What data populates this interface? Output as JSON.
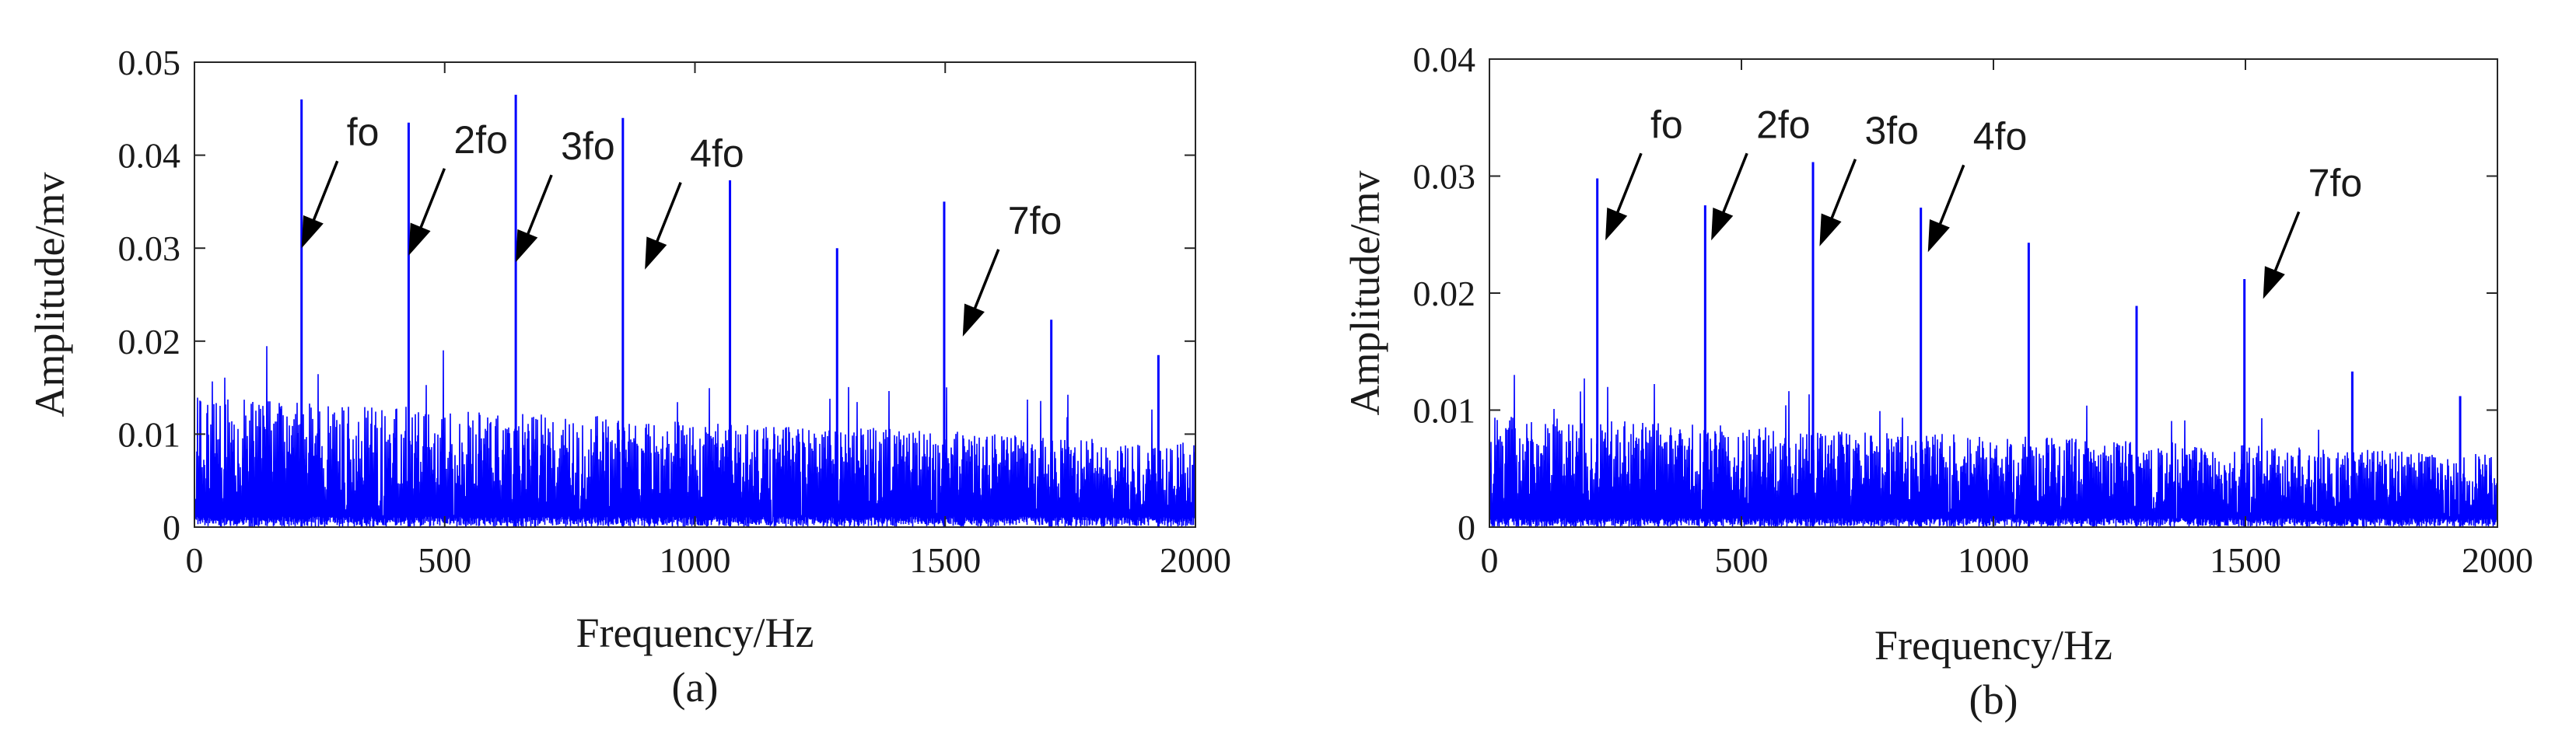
{
  "chart_data": [
    {
      "type": "line",
      "caption": "(a)",
      "xlabel": "Frequency/Hz",
      "ylabel": "Amplitude/mv",
      "xlim": [
        0,
        2000
      ],
      "ylim": [
        0,
        0.05
      ],
      "xticks": [
        0,
        500,
        1000,
        1500,
        2000
      ],
      "xtick_labels": [
        "0",
        "500",
        "1000",
        "1500",
        "2000"
      ],
      "yticks": [
        0,
        0.01,
        0.02,
        0.03,
        0.04,
        0.05
      ],
      "ytick_labels": [
        "0",
        "0.01",
        "0.02",
        "0.03",
        "0.04",
        "0.05"
      ],
      "grid": false,
      "line_color": "#0000ff",
      "noise_floor": {
        "typical_max": 0.014,
        "peak_max": 0.021
      },
      "peaks": [
        {
          "x": 214,
          "y": 0.046
        },
        {
          "x": 428,
          "y": 0.0435
        },
        {
          "x": 642,
          "y": 0.0465
        },
        {
          "x": 856,
          "y": 0.044
        },
        {
          "x": 1070,
          "y": 0.0373
        },
        {
          "x": 1284,
          "y": 0.03
        },
        {
          "x": 1498,
          "y": 0.035
        },
        {
          "x": 1712,
          "y": 0.0223
        },
        {
          "x": 1926,
          "y": 0.0185
        }
      ],
      "annotations": [
        {
          "text": "fo",
          "x": 214,
          "y": 0.03
        },
        {
          "text": "2fo",
          "x": 428,
          "y": 0.0292
        },
        {
          "text": "3fo",
          "x": 642,
          "y": 0.0285
        },
        {
          "text": "4fo",
          "x": 900,
          "y": 0.0277
        },
        {
          "text": "7fo",
          "x": 1535,
          "y": 0.0205
        }
      ]
    },
    {
      "type": "line",
      "caption": "(b)",
      "xlabel": "Frequency/Hz",
      "ylabel": "Amplitude/mv",
      "xlim": [
        0,
        2000
      ],
      "ylim": [
        0,
        0.04
      ],
      "xticks": [
        0,
        500,
        1000,
        1500,
        2000
      ],
      "xtick_labels": [
        "0",
        "500",
        "1000",
        "1500",
        "2000"
      ],
      "yticks": [
        0,
        0.01,
        0.02,
        0.03,
        0.04
      ],
      "ytick_labels": [
        "0",
        "0.01",
        "0.02",
        "0.03",
        "0.04"
      ],
      "grid": false,
      "line_color": "#0000ff",
      "noise_floor": {
        "typical_max": 0.0095,
        "peak_max": 0.0135
      },
      "peaks": [
        {
          "x": 214,
          "y": 0.0298
        },
        {
          "x": 428,
          "y": 0.0275
        },
        {
          "x": 642,
          "y": 0.0312
        },
        {
          "x": 856,
          "y": 0.0273
        },
        {
          "x": 1070,
          "y": 0.0243
        },
        {
          "x": 1284,
          "y": 0.0189
        },
        {
          "x": 1498,
          "y": 0.0212
        },
        {
          "x": 1712,
          "y": 0.0133
        },
        {
          "x": 1926,
          "y": 0.0112
        }
      ],
      "annotations": [
        {
          "text": "fo",
          "x": 230,
          "y": 0.0245
        },
        {
          "text": "2fo",
          "x": 440,
          "y": 0.0245
        },
        {
          "text": "3fo",
          "x": 655,
          "y": 0.024
        },
        {
          "text": "4fo",
          "x": 870,
          "y": 0.0235
        },
        {
          "text": "7fo",
          "x": 1535,
          "y": 0.0195
        }
      ]
    }
  ]
}
